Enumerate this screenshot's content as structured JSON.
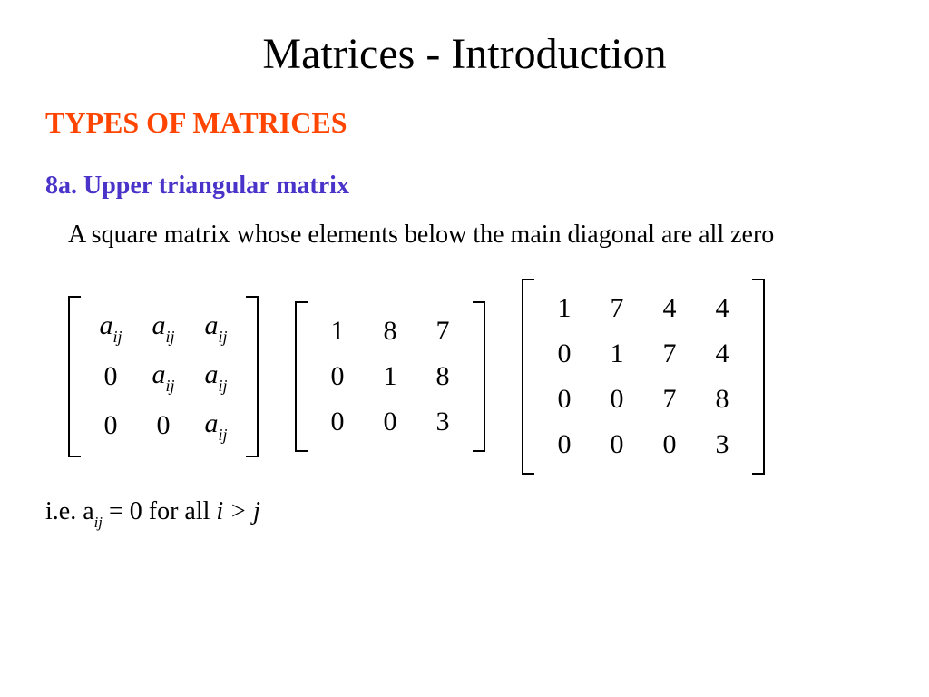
{
  "title": "Matrices - Introduction",
  "section": {
    "text": "TYPES OF MATRICES",
    "color": "#ff4500"
  },
  "subsection": {
    "text": "8a. Upper triangular matrix",
    "color": "#4933c8"
  },
  "description": "A square matrix whose elements below the main diagonal are all zero",
  "matrix_symbolic": {
    "rows": [
      [
        "a_ij",
        "a_ij",
        "a_ij"
      ],
      [
        "0",
        "a_ij",
        "a_ij"
      ],
      [
        "0",
        "0",
        "a_ij"
      ]
    ],
    "fontsize": 30
  },
  "matrix_3x3": {
    "rows": [
      [
        "1",
        "8",
        "7"
      ],
      [
        "0",
        "1",
        "8"
      ],
      [
        "0",
        "0",
        "3"
      ]
    ],
    "fontsize": 30
  },
  "matrix_4x4": {
    "rows": [
      [
        "1",
        "7",
        "4",
        "4"
      ],
      [
        "0",
        "1",
        "7",
        "4"
      ],
      [
        "0",
        "0",
        "7",
        "8"
      ],
      [
        "0",
        "0",
        "0",
        "3"
      ]
    ],
    "fontsize": 30
  },
  "footer": {
    "prefix": "i.e. a",
    "sub1": "ij",
    "mid": " = 0 for all ",
    "ij_rel": "i > j"
  },
  "colors": {
    "text": "#000000",
    "background": "#ffffff"
  }
}
